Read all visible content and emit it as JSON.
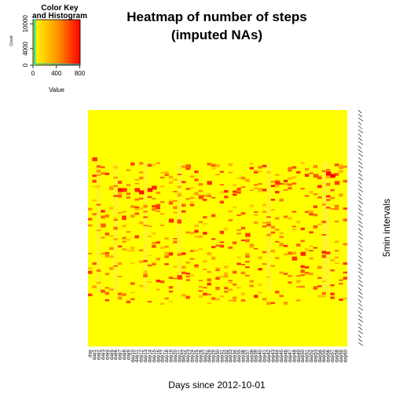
{
  "chart_data": {
    "type": "heatmap",
    "title_line1": "Heatmap of number of steps",
    "title_line2": "(imputed NAs)",
    "xlabel": "Days since 2012-10-01",
    "ylabel": "5min intervals",
    "x_first_label": "day",
    "n_days": 61,
    "value_range": [
      0,
      806
    ],
    "colors": {
      "low": "#ffff00",
      "mid": "#ff9900",
      "high": "#ff0000",
      "frame": "#000000"
    },
    "color_key": {
      "title_line1": "Color Key",
      "title_line2": "and Histogram",
      "ylabel": "Count",
      "xlabel": "Value",
      "xticks": [
        0,
        400,
        800
      ],
      "yticks": [
        0,
        4000,
        10000
      ],
      "histogram_peak": 11000
    },
    "hotspots": [
      {
        "day": 1,
        "interval": 0.2,
        "value": 650
      },
      {
        "day": 3,
        "interval": 0.48,
        "value": 500
      },
      {
        "day": 7,
        "interval": 0.33,
        "value": 720
      },
      {
        "day": 8,
        "interval": 0.33,
        "value": 640
      },
      {
        "day": 11,
        "interval": 0.33,
        "value": 700
      },
      {
        "day": 12,
        "interval": 0.34,
        "value": 750
      },
      {
        "day": 14,
        "interval": 0.33,
        "value": 720
      },
      {
        "day": 15,
        "interval": 0.32,
        "value": 680
      },
      {
        "day": 23,
        "interval": 0.23,
        "value": 520
      },
      {
        "day": 21,
        "interval": 0.7,
        "value": 600
      },
      {
        "day": 19,
        "interval": 0.46,
        "value": 650
      },
      {
        "day": 26,
        "interval": 0.36,
        "value": 560
      },
      {
        "day": 28,
        "interval": 0.3,
        "value": 640
      },
      {
        "day": 37,
        "interval": 0.52,
        "value": 620
      },
      {
        "day": 44,
        "interval": 0.3,
        "value": 640
      },
      {
        "day": 48,
        "interval": 0.62,
        "value": 650
      },
      {
        "day": 50,
        "interval": 0.6,
        "value": 700
      },
      {
        "day": 53,
        "interval": 0.27,
        "value": 520
      },
      {
        "day": 56,
        "interval": 0.26,
        "value": 800
      },
      {
        "day": 57,
        "interval": 0.27,
        "value": 780
      },
      {
        "day": 58,
        "interval": 0.3,
        "value": 600
      }
    ]
  }
}
